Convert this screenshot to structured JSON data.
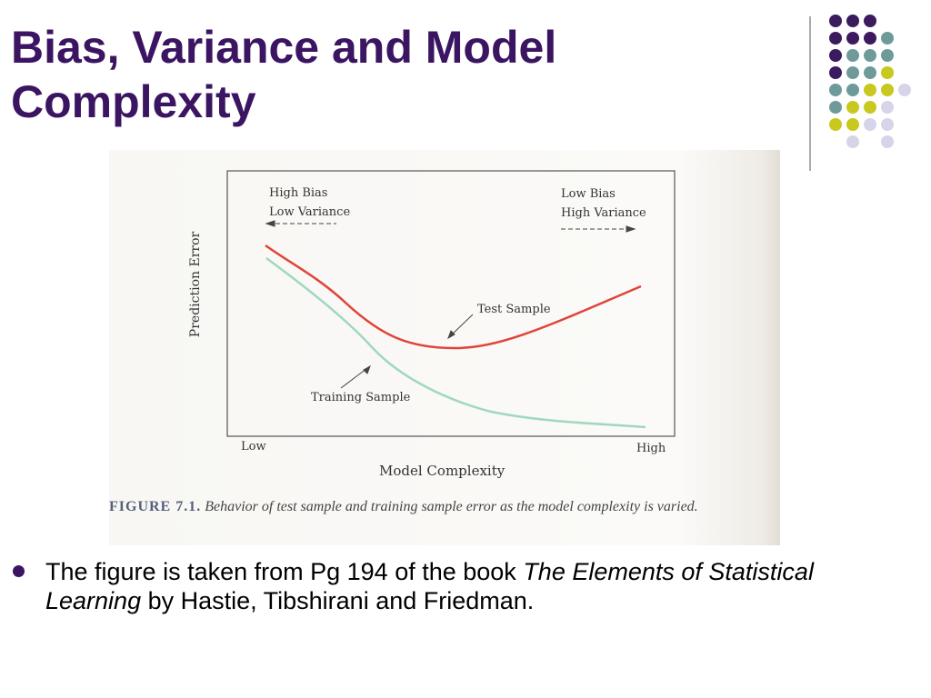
{
  "header": {
    "title": "Bias, Variance and Model Complexity"
  },
  "figure": {
    "left_note": [
      "High Bias",
      "Low Variance"
    ],
    "right_note": [
      "Low Bias",
      "High Variance"
    ],
    "y_label": "Prediction Error",
    "x_label": "Model Complexity",
    "x_low": "Low",
    "x_high": "High",
    "test_label": "Test Sample",
    "train_label": "Training Sample",
    "caption_label": "FIGURE 7.1.",
    "caption_text": "Behavior of test sample and training sample error as the model complexity is varied."
  },
  "bullet": {
    "parts": [
      "The figure is taken from Pg 194 of the book ",
      "The Elements of Statistical Learning",
      " by Hastie, Tibshirani and Friedman."
    ]
  }
}
